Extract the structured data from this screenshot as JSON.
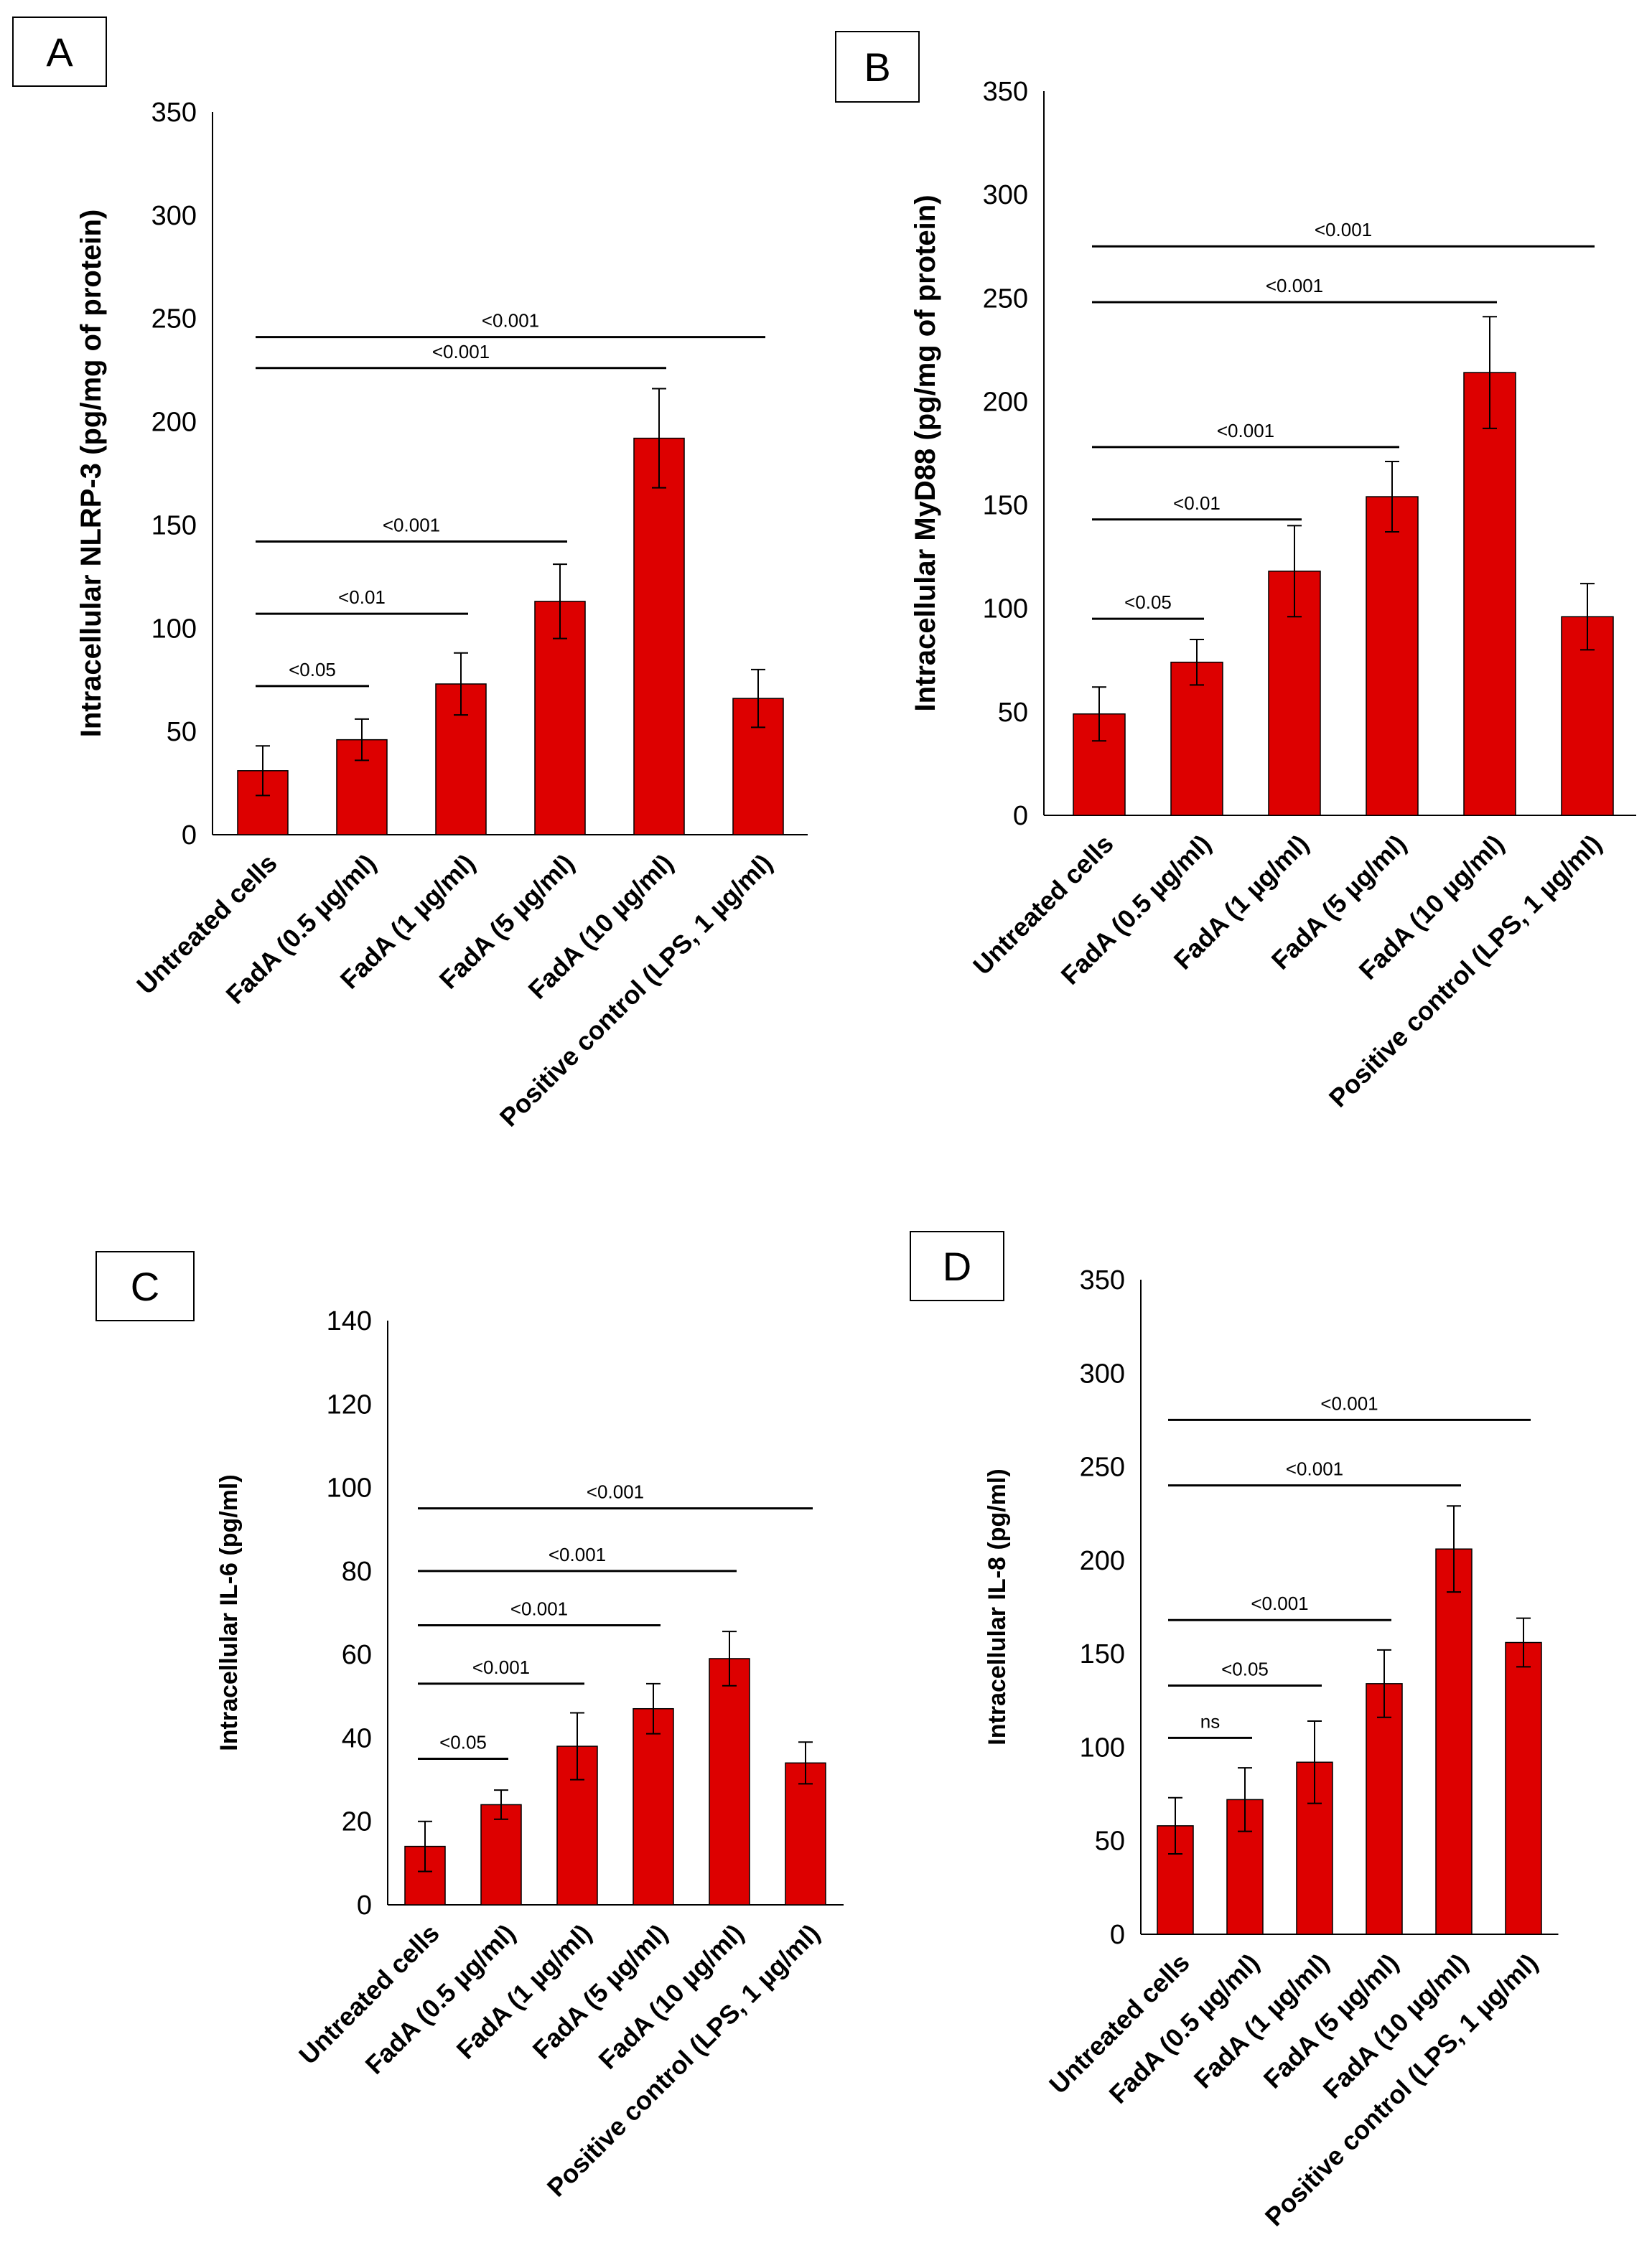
{
  "colors": {
    "bar": "#dd0000",
    "axis": "#000000",
    "frame": "#000000"
  },
  "chart_data": [
    {
      "panel": "A",
      "type": "bar",
      "ylabel": "Intracellular NLRP-3 (pg/mg of protein)",
      "ylim": [
        0,
        350
      ],
      "yticks": [
        0,
        50,
        100,
        150,
        200,
        250,
        300,
        350
      ],
      "categories": [
        "Untreated cells",
        "FadA (0.5 µg/ml)",
        "FadA (1 µg/ml)",
        "FadA (5 µg/ml)",
        "FadA (10 µg/ml)",
        "Positive control (LPS, 1 µg/ml)"
      ],
      "values": [
        31,
        46,
        73,
        113,
        192,
        66
      ],
      "errors": [
        12,
        10,
        15,
        18,
        24,
        14
      ],
      "significance": [
        {
          "label": "<0.05",
          "from": 0,
          "to": 1,
          "y": 72
        },
        {
          "label": "<0.01",
          "from": 0,
          "to": 2,
          "y": 107
        },
        {
          "label": "<0.001",
          "from": 0,
          "to": 3,
          "y": 142
        },
        {
          "label": "<0.001",
          "from": 0,
          "to": 4,
          "y": 226
        },
        {
          "label": "<0.001",
          "from": 0,
          "to": 5,
          "y": 241
        }
      ]
    },
    {
      "panel": "B",
      "type": "bar",
      "ylabel": "Intracellular MyD88 (pg/mg of protein)",
      "ylim": [
        0,
        350
      ],
      "yticks": [
        0,
        50,
        100,
        150,
        200,
        250,
        300,
        350
      ],
      "categories": [
        "Untreated cells",
        "FadA (0.5 µg/ml)",
        "FadA (1 µg/ml)",
        "FadA (5 µg/ml)",
        "FadA (10 µg/ml)",
        "Positive control (LPS, 1 µg/ml)"
      ],
      "values": [
        49,
        74,
        118,
        154,
        214,
        96
      ],
      "errors": [
        13,
        11,
        22,
        17,
        27,
        16
      ],
      "significance": [
        {
          "label": "<0.05",
          "from": 0,
          "to": 1,
          "y": 95
        },
        {
          "label": "<0.01",
          "from": 0,
          "to": 2,
          "y": 143
        },
        {
          "label": "<0.001",
          "from": 0,
          "to": 3,
          "y": 178
        },
        {
          "label": "<0.001",
          "from": 0,
          "to": 4,
          "y": 248
        },
        {
          "label": "<0.001",
          "from": 0,
          "to": 5,
          "y": 275
        }
      ]
    },
    {
      "panel": "C",
      "type": "bar",
      "ylabel": "Intracellular IL-6 (pg/ml)",
      "ylim": [
        0,
        140
      ],
      "yticks": [
        0,
        20,
        40,
        60,
        80,
        100,
        120,
        140
      ],
      "categories": [
        "Untreated cells",
        "FadA (0.5 µg/ml)",
        "FadA (1 µg/ml)",
        "FadA (5 µg/ml)",
        "FadA (10 µg/ml)",
        "Positive control (LPS, 1 µg/ml)"
      ],
      "values": [
        14,
        24,
        38,
        47,
        59,
        34
      ],
      "errors": [
        6,
        3.5,
        8,
        6,
        6.5,
        5
      ],
      "significance": [
        {
          "label": "<0.05",
          "from": 0,
          "to": 1,
          "y": 35
        },
        {
          "label": "<0.001",
          "from": 0,
          "to": 2,
          "y": 53
        },
        {
          "label": "<0.001",
          "from": 0,
          "to": 3,
          "y": 67
        },
        {
          "label": "<0.001",
          "from": 0,
          "to": 4,
          "y": 80
        },
        {
          "label": "<0.001",
          "from": 0,
          "to": 5,
          "y": 95
        }
      ]
    },
    {
      "panel": "D",
      "type": "bar",
      "ylabel": "Intracellular  IL-8 (pg/ml)",
      "ylim": [
        0,
        350
      ],
      "yticks": [
        0,
        50,
        100,
        150,
        200,
        250,
        300,
        350
      ],
      "categories": [
        "Untreated cells",
        "FadA (0.5 µg/ml)",
        "FadA (1 µg/ml)",
        "FadA (5 µg/ml)",
        "FadA (10 µg/ml)",
        "Positive control (LPS, 1 µg/ml)"
      ],
      "values": [
        58,
        72,
        92,
        134,
        206,
        156
      ],
      "errors": [
        15,
        17,
        22,
        18,
        23,
        13
      ],
      "significance": [
        {
          "label": "ns",
          "from": 0,
          "to": 1,
          "y": 105
        },
        {
          "label": "<0.05",
          "from": 0,
          "to": 2,
          "y": 133
        },
        {
          "label": "<0.001",
          "from": 0,
          "to": 3,
          "y": 168
        },
        {
          "label": "<0.001",
          "from": 0,
          "to": 4,
          "y": 240
        },
        {
          "label": "<0.001",
          "from": 0,
          "to": 5,
          "y": 275
        }
      ]
    }
  ]
}
